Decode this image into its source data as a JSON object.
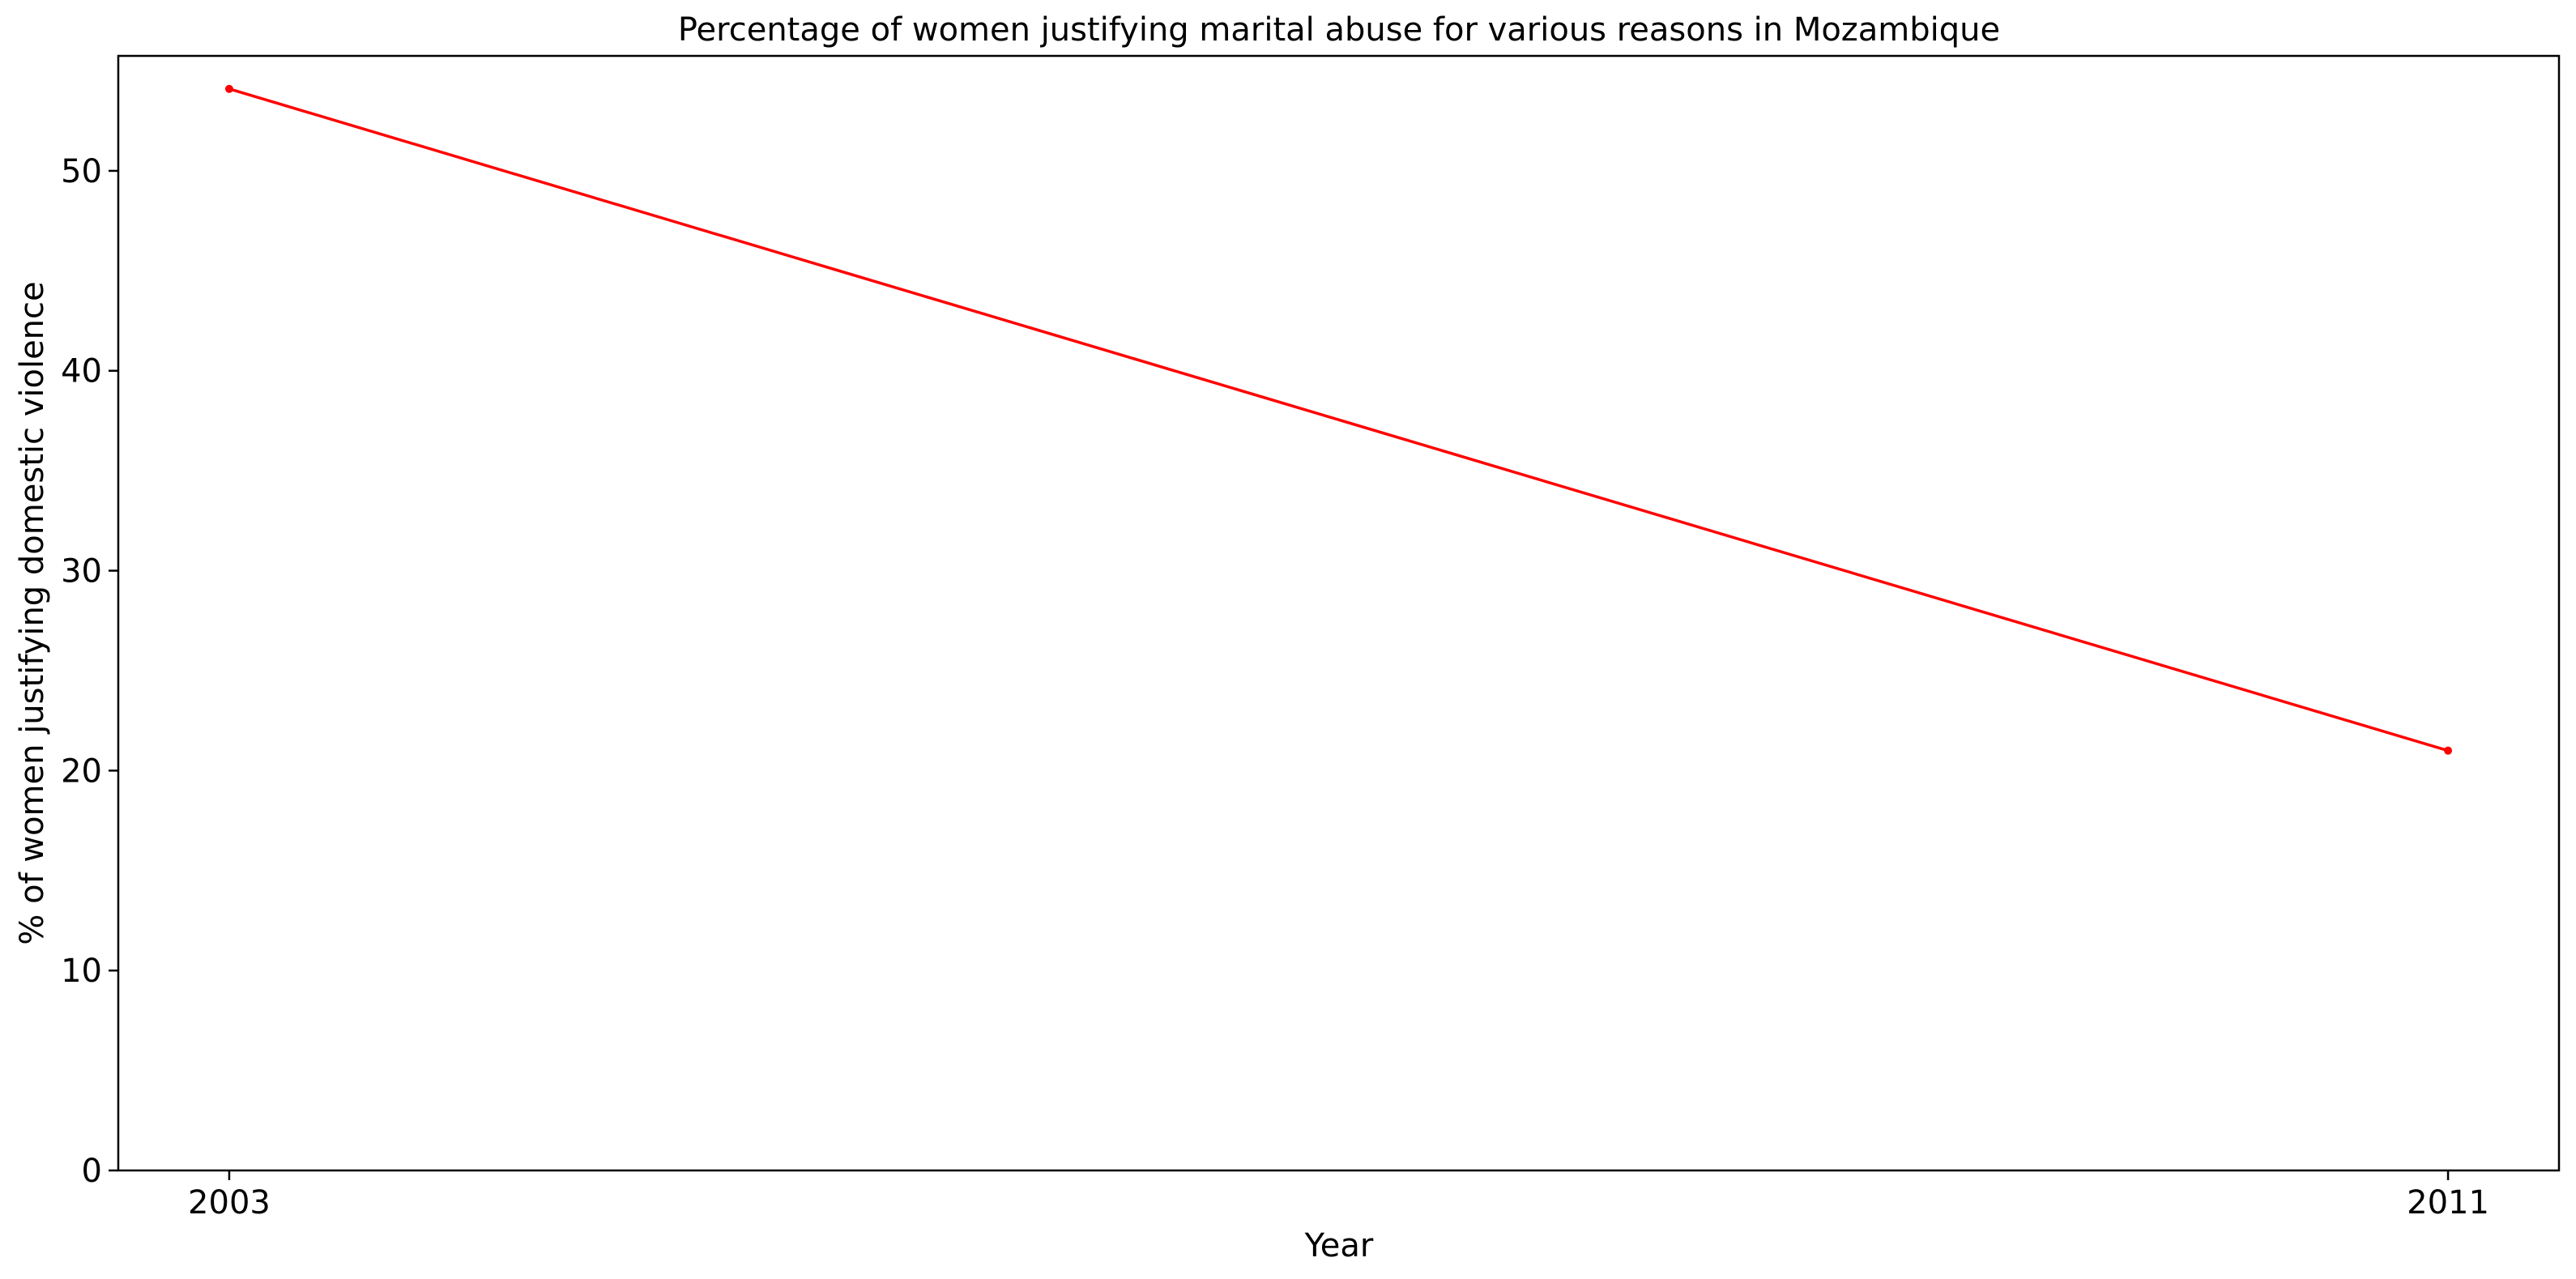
{
  "chart_data": {
    "type": "line",
    "title": "Percentage of women justifying marital abuse for various reasons in Mozambique",
    "xlabel": "Year",
    "ylabel": "% of women justifying domestic violence",
    "x": [
      "2003",
      "2011"
    ],
    "x_numeric": [
      2003,
      2011
    ],
    "series": [
      {
        "values": [
          54.1,
          21.0
        ],
        "color": "#ff0000",
        "marker": "point"
      }
    ],
    "x_ticks": [
      "2003",
      "2011"
    ],
    "y_ticks": [
      "0",
      "10",
      "20",
      "30",
      "40",
      "50"
    ],
    "y_tick_values": [
      0,
      10,
      20,
      30,
      40,
      50
    ],
    "ylim": [
      0,
      55.75
    ],
    "xlim": [
      2002.6,
      2011.4
    ],
    "grid": false,
    "legend": "none"
  }
}
